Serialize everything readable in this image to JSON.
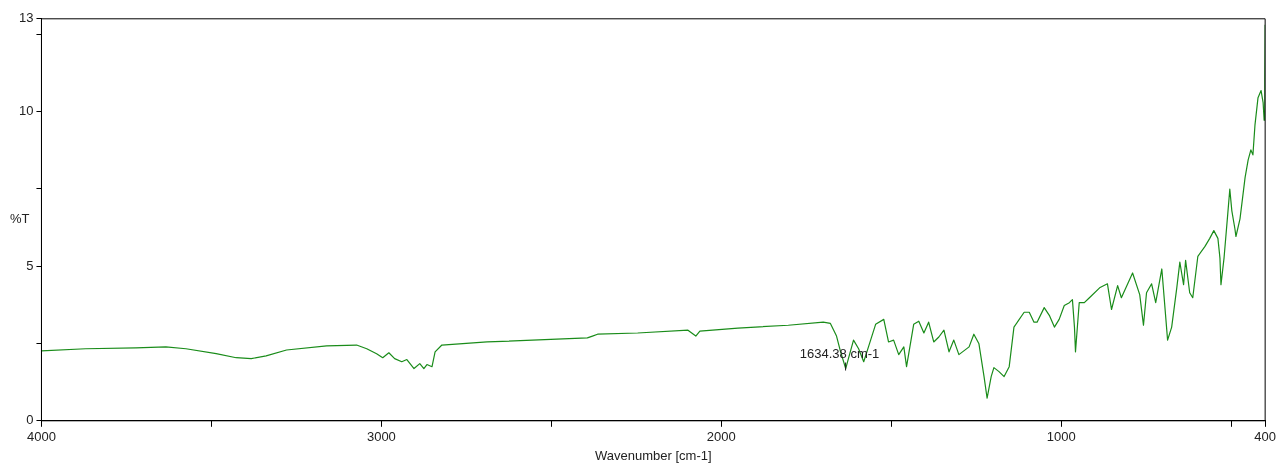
{
  "chart_data": {
    "type": "line",
    "xlabel": "Wavenumber [cm-1]",
    "ylabel": "%T",
    "xlim": [
      4000,
      400
    ],
    "xticks": [
      4000,
      {
        "value": 3500,
        "label": null
      },
      3000,
      {
        "value": 2500,
        "label": null
      },
      2000,
      {
        "value": 1500,
        "label": null
      },
      1000,
      {
        "value": 500,
        "label": null
      },
      400
    ],
    "ylim": [
      0,
      13
    ],
    "yticks": [
      0,
      {
        "value": 2.5,
        "label": null
      },
      5,
      {
        "value": 7.5,
        "label": null
      },
      10,
      {
        "value": 12.5,
        "label": null
      },
      13
    ],
    "marker": "none",
    "line_style": "solid",
    "annotations": [
      {
        "text": "1634.38 cm-1",
        "x": 1634.38,
        "y": 1.69
      }
    ],
    "series": [
      {
        "color": "#1a8c1a",
        "x": [
          4000,
          3870,
          3722,
          3634,
          3575,
          3486,
          3427,
          3383,
          3339,
          3279,
          3161,
          3073,
          3043,
          3014,
          2996,
          2978,
          2961,
          2940,
          2925,
          2904,
          2887,
          2875,
          2866,
          2851,
          2842,
          2822,
          2689,
          2394,
          2379,
          2364,
          2246,
          2098,
          2075,
          2063,
          1951,
          1803,
          1700,
          1679,
          1661,
          1649,
          1634,
          1626,
          1611,
          1596,
          1581,
          1567,
          1546,
          1522,
          1508,
          1493,
          1478,
          1463,
          1455,
          1434,
          1419,
          1404,
          1390,
          1375,
          1360,
          1345,
          1330,
          1316,
          1301,
          1271,
          1257,
          1242,
          1227,
          1218,
          1206,
          1198,
          1183,
          1168,
          1153,
          1139,
          1109,
          1094,
          1080,
          1071,
          1050,
          1035,
          1020,
          1006,
          991,
          976,
          967,
          961,
          958,
          947,
          932,
          917,
          887,
          864,
          852,
          834,
          823,
          790,
          769,
          758,
          749,
          734,
          722,
          704,
          687,
          675,
          660,
          651,
          640,
          634,
          622,
          613,
          598,
          577,
          563,
          551,
          539,
          533,
          530,
          521,
          510,
          504,
          498,
          489,
          486,
          474,
          459,
          450,
          442,
          436,
          430,
          421,
          412,
          406,
          403,
          401,
          400
        ],
        "values": [
          2.26,
          2.33,
          2.36,
          2.39,
          2.33,
          2.17,
          2.04,
          2.01,
          2.1,
          2.29,
          2.42,
          2.45,
          2.33,
          2.17,
          2.04,
          2.2,
          2.01,
          1.91,
          1.98,
          1.69,
          1.85,
          1.69,
          1.82,
          1.75,
          2.23,
          2.45,
          2.55,
          2.68,
          2.74,
          2.8,
          2.84,
          2.93,
          2.74,
          2.9,
          3.0,
          3.09,
          3.19,
          3.15,
          2.74,
          2.23,
          1.69,
          2.01,
          2.61,
          2.33,
          1.91,
          2.39,
          3.12,
          3.28,
          2.55,
          2.61,
          2.14,
          2.39,
          1.75,
          3.12,
          3.22,
          2.84,
          3.19,
          2.55,
          2.71,
          2.93,
          2.23,
          2.61,
          2.14,
          2.39,
          2.8,
          2.49,
          1.43,
          0.73,
          1.43,
          1.72,
          1.59,
          1.43,
          1.75,
          3.03,
          3.51,
          3.51,
          3.19,
          3.19,
          3.66,
          3.41,
          3.03,
          3.28,
          3.73,
          3.82,
          3.92,
          3.03,
          2.23,
          3.82,
          3.82,
          3.98,
          4.3,
          4.43,
          3.6,
          4.37,
          3.98,
          4.78,
          4.08,
          3.09,
          4.14,
          4.43,
          3.82,
          4.91,
          2.61,
          3.03,
          4.3,
          5.13,
          4.4,
          5.19,
          4.14,
          3.98,
          5.32,
          5.64,
          5.9,
          6.15,
          5.9,
          5.26,
          4.4,
          5.26,
          6.69,
          7.49,
          6.79,
          6.21,
          5.96,
          6.53,
          7.87,
          8.44,
          8.76,
          8.6,
          9.56,
          10.45,
          10.68,
          10.29,
          9.72,
          11.06,
          12.81
        ]
      }
    ]
  }
}
